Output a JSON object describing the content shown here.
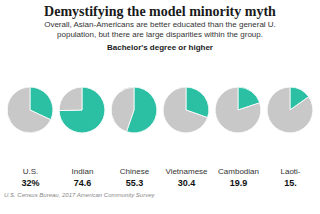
{
  "chart_data": {
    "type": "pie",
    "title": "Demystifying the model minority myth",
    "subtitle": [
      "Overall, Asian-Americans are better educated than the general U.",
      "population, but there are large disparities within the group."
    ],
    "annotations": [
      "Bachelor's degree or higher"
    ],
    "source": "U.S. Census Bureau, 2017 American Community Survey",
    "categories": [
      "U.S.",
      "Indian",
      "Chinese",
      "Vietnamese",
      "Cambodian",
      "Laoti-"
    ],
    "series": [
      {
        "color": "#2bbfa4",
        "values": [
          32,
          74.6,
          55.3,
          30.4,
          19.9,
          15.2
        ],
        "value_labels": [
          "32%",
          "74.6",
          "55.3",
          "30.4",
          "19.9",
          "15."
        ]
      },
      {
        "color": "#c8c8c8",
        "values": [
          68,
          25.4,
          44.7,
          69.6,
          80.1,
          84.8
        ]
      }
    ],
    "data_labels": true
  }
}
